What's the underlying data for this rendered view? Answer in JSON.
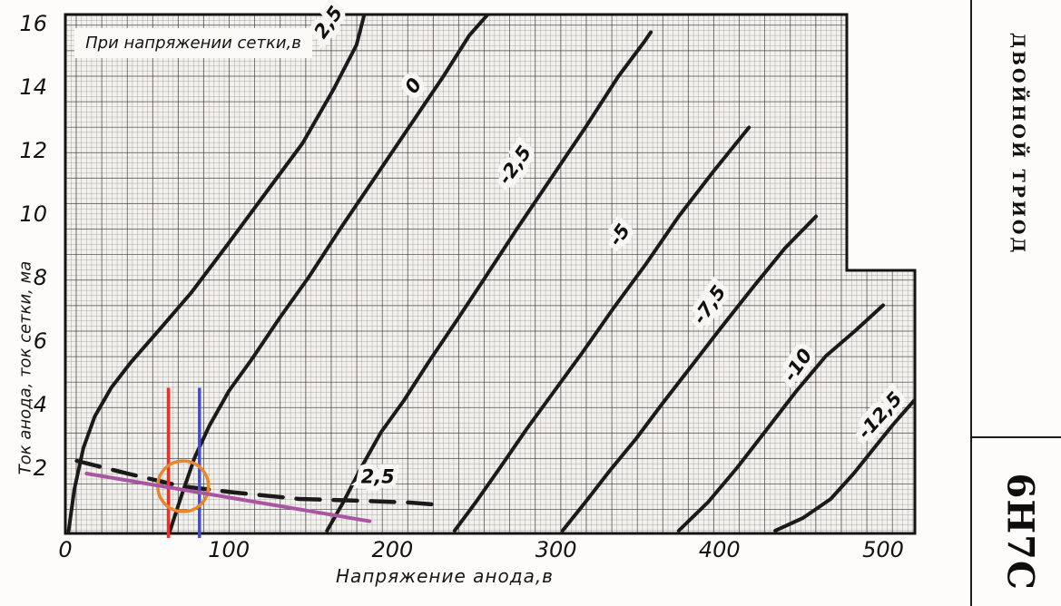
{
  "sidebar": {
    "tube_type": "ДВОЙНОЙ ТРИОД",
    "tube_name": "6Н7С"
  },
  "chart_data": {
    "type": "line",
    "legend_box": "При напряжении сетки,в",
    "xlabel": "Напряжение анода,в",
    "ylabel": "Ток анода, ток сетки, ма",
    "xlim": [
      0,
      520
    ],
    "ylim": [
      0,
      16.3
    ],
    "x_ticks": [
      0,
      100,
      200,
      300,
      400,
      500
    ],
    "y_ticks": [
      2,
      4,
      6,
      8,
      10,
      12,
      14,
      16
    ],
    "grid": "fine graph-paper grid, bold line every 5 cells",
    "curve_color": "#1a1a1a",
    "series": [
      {
        "label": "2,5",
        "grid_voltage_v": 2.5,
        "style": "solid",
        "points": [
          [
            2,
            0
          ],
          [
            5.5,
            1.3
          ],
          [
            11,
            2.6
          ],
          [
            18,
            3.6
          ],
          [
            28,
            4.5
          ],
          [
            40,
            5.3
          ],
          [
            57,
            6.3
          ],
          [
            77,
            7.5
          ],
          [
            99,
            9.0
          ],
          [
            122,
            10.6
          ],
          [
            145,
            12.2
          ],
          [
            164,
            13.9
          ],
          [
            178,
            15.3
          ],
          [
            183,
            16.3
          ]
        ],
        "label_pos": [
          164,
          15.9
        ],
        "label_rot": -55
      },
      {
        "label": "0",
        "grid_voltage_v": 0,
        "style": "solid",
        "points": [
          [
            64,
            0
          ],
          [
            71,
            1.1
          ],
          [
            79,
            2.3
          ],
          [
            88,
            3.3
          ],
          [
            100,
            4.4
          ],
          [
            114,
            5.4
          ],
          [
            131,
            6.7
          ],
          [
            149,
            8.0
          ],
          [
            168,
            9.5
          ],
          [
            189,
            11.1
          ],
          [
            210,
            12.7
          ],
          [
            231,
            14.3
          ],
          [
            247,
            15.6
          ],
          [
            259,
            16.3
          ]
        ],
        "label_pos": [
          216,
          13.9
        ],
        "label_rot": -55
      },
      {
        "label": "-2,5",
        "grid_voltage_v": -2.5,
        "style": "solid",
        "points": [
          [
            160,
            0
          ],
          [
            170,
            0.9
          ],
          [
            181,
            2.0
          ],
          [
            193,
            3.1
          ],
          [
            207,
            4.1
          ],
          [
            222,
            5.3
          ],
          [
            239,
            6.6
          ],
          [
            257,
            8.0
          ],
          [
            276,
            9.5
          ],
          [
            297,
            11.1
          ],
          [
            318,
            12.7
          ],
          [
            338,
            14.3
          ],
          [
            354,
            15.4
          ],
          [
            358,
            15.7
          ]
        ],
        "label_pos": [
          278,
          11.4
        ],
        "label_rot": -55
      },
      {
        "label": "-5",
        "grid_voltage_v": -5,
        "style": "solid",
        "points": [
          [
            238,
            0
          ],
          [
            251,
            0.9
          ],
          [
            266,
            2.0
          ],
          [
            282,
            3.2
          ],
          [
            299,
            4.4
          ],
          [
            316,
            5.6
          ],
          [
            335,
            7.0
          ],
          [
            355,
            8.4
          ],
          [
            375,
            9.9
          ],
          [
            396,
            11.3
          ],
          [
            418,
            12.7
          ]
        ],
        "label_pos": [
          342,
          9.2
        ],
        "label_rot": -55
      },
      {
        "label": "-7,5",
        "grid_voltage_v": -7.5,
        "style": "solid",
        "points": [
          [
            304,
            0
          ],
          [
            318,
            0.9
          ],
          [
            333,
            1.9
          ],
          [
            349,
            2.9
          ],
          [
            365,
            4.0
          ],
          [
            383,
            5.2
          ],
          [
            401,
            6.4
          ],
          [
            421,
            7.7
          ],
          [
            440,
            8.9
          ],
          [
            459,
            9.9
          ]
        ],
        "label_pos": [
          397,
          7.0
        ],
        "label_rot": -55
      },
      {
        "label": "-10",
        "grid_voltage_v": -10,
        "style": "solid",
        "points": [
          [
            375,
            0
          ],
          [
            393,
            0.9
          ],
          [
            411,
            2.0
          ],
          [
            429,
            3.2
          ],
          [
            447,
            4.4
          ],
          [
            465,
            5.5
          ],
          [
            483,
            6.3
          ],
          [
            500,
            7.1
          ]
        ],
        "label_pos": [
          451,
          5.1
        ],
        "label_rot": -55
      },
      {
        "label": "-12,5",
        "grid_voltage_v": -12.5,
        "style": "solid",
        "points": [
          [
            434,
            0
          ],
          [
            451,
            0.4
          ],
          [
            468,
            1.0
          ],
          [
            482,
            1.8
          ],
          [
            496,
            2.7
          ],
          [
            507,
            3.4
          ],
          [
            519,
            4.1
          ]
        ],
        "label_pos": [
          501,
          3.5
        ],
        "label_rot": -48
      },
      {
        "label": "2,5",
        "grid_voltage_v": 2.5,
        "style": "dashed",
        "points": [
          [
            7,
            2.2
          ],
          [
            38,
            1.8
          ],
          [
            71,
            1.4
          ],
          [
            104,
            1.2
          ],
          [
            143,
            1.0
          ],
          [
            182,
            0.94
          ],
          [
            210,
            0.89
          ],
          [
            232,
            0.8
          ]
        ],
        "label_pos": [
          191,
          1.5
        ],
        "label_rot": 0
      }
    ],
    "annotations": [
      {
        "type": "vline",
        "name": "red-marker-line",
        "color": "#e2342b",
        "x": 63,
        "y_top": 4.5
      },
      {
        "type": "vline",
        "name": "blue-marker-line",
        "color": "#4550c0",
        "x": 82,
        "y_top": 4.5
      },
      {
        "type": "circle",
        "name": "orange-highlight-circle",
        "color": "#e8872e",
        "center": [
          72,
          1.4
        ],
        "radius_v": 15.5
      },
      {
        "type": "line",
        "name": "magenta-load-line",
        "color": "#a855a2",
        "from": [
          13,
          1.8
        ],
        "to": [
          186,
          0.3
        ]
      }
    ]
  }
}
